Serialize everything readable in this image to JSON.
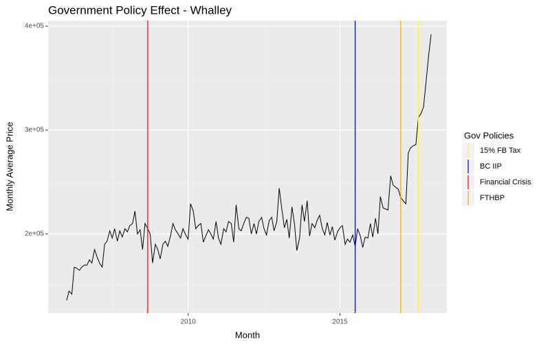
{
  "chart_data": {
    "type": "line",
    "title": "Government Policy Effect - Whalley",
    "x_label": "Month",
    "y_label": "Monthly Average Price",
    "xlim": [
      2005.39,
      2018.52
    ],
    "xticks": [
      2010,
      2015
    ],
    "ylim": [
      123841,
      405298
    ],
    "yticks": [
      {
        "value": 200000,
        "label": "2e+05"
      },
      {
        "value": 300000,
        "label": "3e+05"
      },
      {
        "value": 400000,
        "label": "4e+05"
      }
    ],
    "grid": true,
    "color": "#000000",
    "x": [
      2006,
      2006.08,
      2006.17,
      2006.25,
      2006.33,
      2006.42,
      2006.5,
      2006.58,
      2006.67,
      2006.75,
      2006.83,
      2006.92,
      2007,
      2007.08,
      2007.17,
      2007.25,
      2007.33,
      2007.42,
      2007.5,
      2007.58,
      2007.67,
      2007.75,
      2007.83,
      2007.92,
      2008,
      2008.08,
      2008.17,
      2008.25,
      2008.33,
      2008.42,
      2008.5,
      2008.58,
      2008.67,
      2008.75,
      2008.83,
      2008.92,
      2009,
      2009.08,
      2009.17,
      2009.25,
      2009.33,
      2009.42,
      2009.5,
      2009.58,
      2009.67,
      2009.75,
      2009.83,
      2009.92,
      2010,
      2010.08,
      2010.17,
      2010.25,
      2010.33,
      2010.42,
      2010.5,
      2010.58,
      2010.67,
      2010.75,
      2010.83,
      2010.92,
      2011,
      2011.08,
      2011.17,
      2011.25,
      2011.33,
      2011.42,
      2011.5,
      2011.58,
      2011.67,
      2011.75,
      2011.83,
      2011.92,
      2012,
      2012.08,
      2012.17,
      2012.25,
      2012.33,
      2012.42,
      2012.5,
      2012.58,
      2012.67,
      2012.75,
      2012.83,
      2012.92,
      2013,
      2013.08,
      2013.17,
      2013.25,
      2013.33,
      2013.42,
      2013.5,
      2013.58,
      2013.67,
      2013.75,
      2013.83,
      2013.92,
      2014,
      2014.08,
      2014.17,
      2014.25,
      2014.33,
      2014.42,
      2014.5,
      2014.58,
      2014.67,
      2014.75,
      2014.83,
      2014.92,
      2015,
      2015.08,
      2015.17,
      2015.25,
      2015.33,
      2015.42,
      2015.5,
      2015.58,
      2015.67,
      2015.75,
      2015.83,
      2015.92,
      2016,
      2016.08,
      2016.17,
      2016.25,
      2016.33,
      2016.42,
      2016.5,
      2016.58,
      2016.67,
      2016.75,
      2016.83,
      2016.92,
      2017,
      2017.08,
      2017.17,
      2017.25,
      2017.33,
      2017.42,
      2017.5,
      2017.58,
      2017.67,
      2017.75,
      2017.83,
      2017.92,
      2018
    ],
    "values": [
      136000,
      145000,
      142000,
      168000,
      167000,
      165000,
      168000,
      170000,
      170000,
      175000,
      172000,
      185000,
      178000,
      172000,
      168000,
      190000,
      193000,
      203000,
      196000,
      205000,
      193000,
      203000,
      197000,
      205000,
      202000,
      208000,
      210000,
      222000,
      200000,
      204000,
      185000,
      210000,
      205000,
      200000,
      172000,
      190000,
      185000,
      176000,
      190000,
      193000,
      188000,
      198000,
      210000,
      204000,
      200000,
      196000,
      205000,
      199000,
      195000,
      229000,
      222000,
      205000,
      208000,
      210000,
      192000,
      198000,
      204000,
      200000,
      195000,
      212000,
      196000,
      190000,
      205000,
      202000,
      212000,
      210000,
      192000,
      228000,
      205000,
      203000,
      210000,
      216000,
      215000,
      200000,
      210000,
      200000,
      212000,
      216000,
      205000,
      199000,
      213000,
      216000,
      203000,
      212000,
      244000,
      225000,
      206000,
      214000,
      196000,
      226000,
      210000,
      184000,
      196000,
      228000,
      212000,
      232000,
      198000,
      210000,
      206000,
      213000,
      218000,
      205000,
      199000,
      211000,
      199000,
      207000,
      194000,
      202000,
      206000,
      208000,
      190000,
      195000,
      192000,
      199000,
      188000,
      205000,
      198000,
      187000,
      197000,
      196000,
      210000,
      197000,
      215000,
      200000,
      236000,
      225000,
      224000,
      223000,
      256000,
      247000,
      245000,
      243000,
      235000,
      232000,
      229000,
      278000,
      283000,
      285000,
      286000,
      312000,
      316000,
      322000,
      345000,
      372000,
      392000
    ],
    "legend_title": "Gov Policies",
    "vlines": [
      {
        "name": "15% FB Tax",
        "color": "#ffee55",
        "x": 2017.58
      },
      {
        "name": "BC IIP",
        "color": "#0000cc",
        "x": 2015.5
      },
      {
        "name": "Financial Crisis",
        "color": "#dd0000",
        "x": 2008.67
      },
      {
        "name": "FTHBP",
        "color": "#ffa500",
        "x": 2017
      }
    ]
  }
}
